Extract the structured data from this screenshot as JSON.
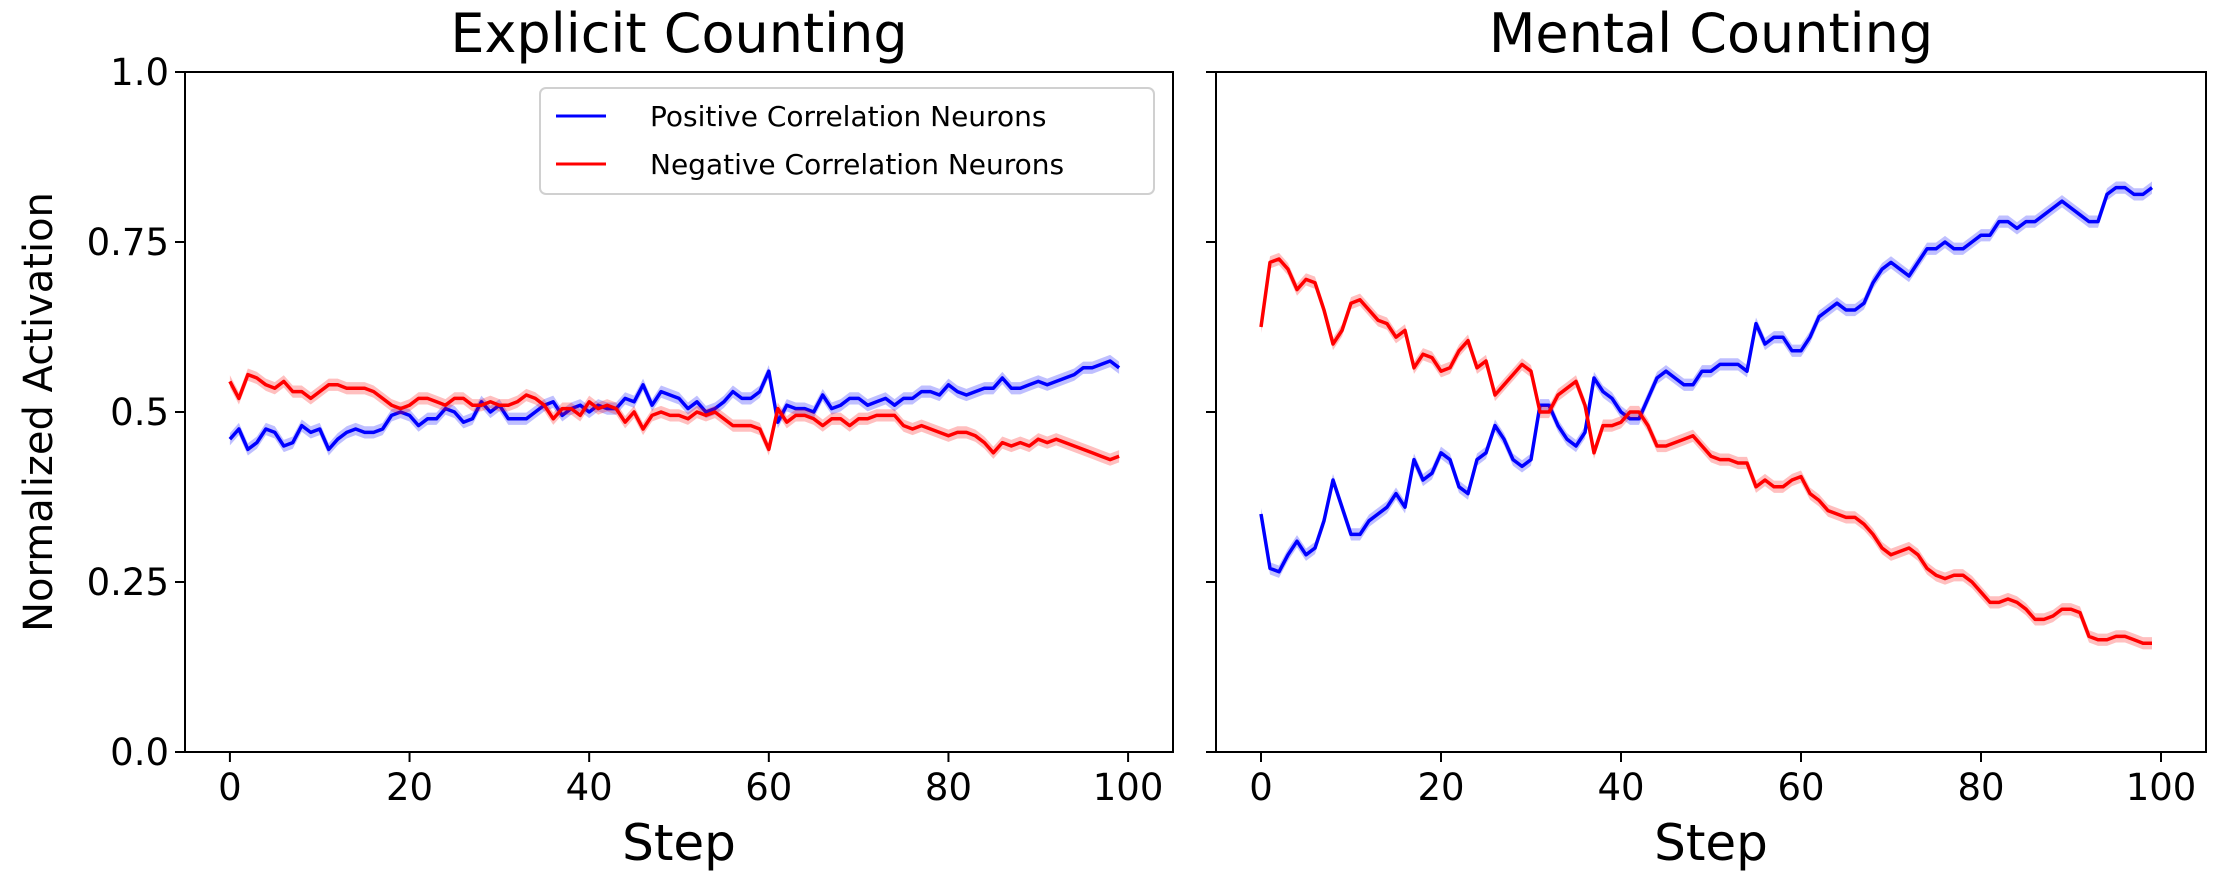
{
  "chart_data": [
    {
      "type": "line",
      "title": "Explicit Counting",
      "xlabel": "Step",
      "ylabel": "Normalized Activation",
      "xlim": [
        -5,
        105
      ],
      "ylim": [
        0,
        1
      ],
      "xticks": [
        "0",
        "20",
        "40",
        "60",
        "80",
        "100"
      ],
      "yticks": [
        "0.0",
        "0.25",
        "0.5",
        "0.75",
        "1.0"
      ],
      "grid": false,
      "legend": "top-right",
      "series": [
        {
          "name": "Positive Correlation Neurons",
          "color": "#0000ff",
          "values": [
            0.46,
            0.475,
            0.445,
            0.455,
            0.475,
            0.47,
            0.45,
            0.455,
            0.48,
            0.47,
            0.475,
            0.445,
            0.46,
            0.47,
            0.475,
            0.47,
            0.47,
            0.475,
            0.495,
            0.5,
            0.495,
            0.48,
            0.49,
            0.49,
            0.505,
            0.5,
            0.485,
            0.49,
            0.515,
            0.5,
            0.51,
            0.49,
            0.49,
            0.49,
            0.5,
            0.51,
            0.515,
            0.495,
            0.505,
            0.51,
            0.5,
            0.51,
            0.505,
            0.505,
            0.52,
            0.515,
            0.54,
            0.51,
            0.53,
            0.525,
            0.52,
            0.505,
            0.515,
            0.5,
            0.505,
            0.515,
            0.53,
            0.52,
            0.52,
            0.53,
            0.56,
            0.485,
            0.51,
            0.505,
            0.505,
            0.5,
            0.525,
            0.505,
            0.51,
            0.52,
            0.52,
            0.51,
            0.515,
            0.52,
            0.51,
            0.52,
            0.52,
            0.53,
            0.53,
            0.525,
            0.54,
            0.53,
            0.525,
            0.53,
            0.535,
            0.535,
            0.55,
            0.535,
            0.535,
            0.54,
            0.545,
            0.54,
            0.545,
            0.55,
            0.555,
            0.565,
            0.565,
            0.57,
            0.575,
            0.565
          ]
        },
        {
          "name": "Negative Correlation Neurons",
          "color": "#ff0000",
          "values": [
            0.545,
            0.52,
            0.555,
            0.55,
            0.54,
            0.535,
            0.545,
            0.53,
            0.53,
            0.52,
            0.53,
            0.54,
            0.54,
            0.535,
            0.535,
            0.535,
            0.53,
            0.52,
            0.51,
            0.505,
            0.51,
            0.52,
            0.52,
            0.515,
            0.51,
            0.52,
            0.52,
            0.51,
            0.51,
            0.515,
            0.51,
            0.51,
            0.515,
            0.525,
            0.52,
            0.51,
            0.49,
            0.505,
            0.505,
            0.495,
            0.515,
            0.505,
            0.51,
            0.505,
            0.485,
            0.5,
            0.475,
            0.495,
            0.5,
            0.495,
            0.495,
            0.49,
            0.5,
            0.495,
            0.5,
            0.49,
            0.48,
            0.48,
            0.48,
            0.475,
            0.445,
            0.505,
            0.485,
            0.495,
            0.495,
            0.49,
            0.48,
            0.49,
            0.49,
            0.48,
            0.49,
            0.49,
            0.495,
            0.495,
            0.495,
            0.48,
            0.475,
            0.48,
            0.475,
            0.47,
            0.465,
            0.47,
            0.47,
            0.465,
            0.455,
            0.44,
            0.455,
            0.45,
            0.455,
            0.45,
            0.46,
            0.455,
            0.46,
            0.455,
            0.45,
            0.445,
            0.44,
            0.435,
            0.43,
            0.435
          ]
        }
      ]
    },
    {
      "type": "line",
      "title": "Mental Counting",
      "xlabel": "Step",
      "xlim": [
        -5,
        105
      ],
      "ylim": [
        0,
        1
      ],
      "xticks": [
        "0",
        "20",
        "40",
        "60",
        "80",
        "100"
      ],
      "grid": false,
      "series": [
        {
          "name": "Positive Correlation Neurons",
          "color": "#0000ff",
          "values": [
            0.35,
            0.27,
            0.265,
            0.29,
            0.31,
            0.29,
            0.3,
            0.34,
            0.4,
            0.36,
            0.32,
            0.32,
            0.34,
            0.35,
            0.36,
            0.38,
            0.36,
            0.43,
            0.4,
            0.41,
            0.44,
            0.43,
            0.39,
            0.38,
            0.43,
            0.44,
            0.48,
            0.46,
            0.43,
            0.42,
            0.43,
            0.51,
            0.51,
            0.48,
            0.46,
            0.45,
            0.47,
            0.55,
            0.53,
            0.52,
            0.5,
            0.49,
            0.49,
            0.52,
            0.55,
            0.56,
            0.55,
            0.54,
            0.54,
            0.56,
            0.56,
            0.57,
            0.57,
            0.57,
            0.56,
            0.63,
            0.6,
            0.61,
            0.61,
            0.59,
            0.59,
            0.61,
            0.64,
            0.65,
            0.66,
            0.65,
            0.65,
            0.66,
            0.69,
            0.71,
            0.72,
            0.71,
            0.7,
            0.72,
            0.74,
            0.74,
            0.75,
            0.74,
            0.74,
            0.75,
            0.76,
            0.76,
            0.78,
            0.78,
            0.77,
            0.78,
            0.78,
            0.79,
            0.8,
            0.81,
            0.8,
            0.79,
            0.78,
            0.78,
            0.82,
            0.83,
            0.83,
            0.82,
            0.82,
            0.83
          ]
        },
        {
          "name": "Negative Correlation Neurons",
          "color": "#ff0000",
          "values": [
            0.625,
            0.72,
            0.725,
            0.71,
            0.68,
            0.695,
            0.69,
            0.65,
            0.6,
            0.62,
            0.66,
            0.665,
            0.65,
            0.635,
            0.63,
            0.61,
            0.62,
            0.565,
            0.585,
            0.58,
            0.56,
            0.565,
            0.59,
            0.605,
            0.565,
            0.575,
            0.525,
            0.54,
            0.555,
            0.57,
            0.56,
            0.5,
            0.5,
            0.525,
            0.535,
            0.545,
            0.51,
            0.44,
            0.48,
            0.48,
            0.485,
            0.5,
            0.5,
            0.48,
            0.45,
            0.45,
            0.455,
            0.46,
            0.465,
            0.45,
            0.435,
            0.43,
            0.43,
            0.425,
            0.425,
            0.39,
            0.4,
            0.39,
            0.39,
            0.4,
            0.405,
            0.38,
            0.37,
            0.355,
            0.35,
            0.345,
            0.345,
            0.335,
            0.32,
            0.3,
            0.29,
            0.295,
            0.3,
            0.29,
            0.27,
            0.26,
            0.255,
            0.26,
            0.26,
            0.25,
            0.235,
            0.22,
            0.22,
            0.225,
            0.22,
            0.21,
            0.195,
            0.195,
            0.2,
            0.21,
            0.21,
            0.205,
            0.17,
            0.165,
            0.165,
            0.17,
            0.17,
            0.165,
            0.16,
            0.16
          ]
        }
      ]
    }
  ]
}
